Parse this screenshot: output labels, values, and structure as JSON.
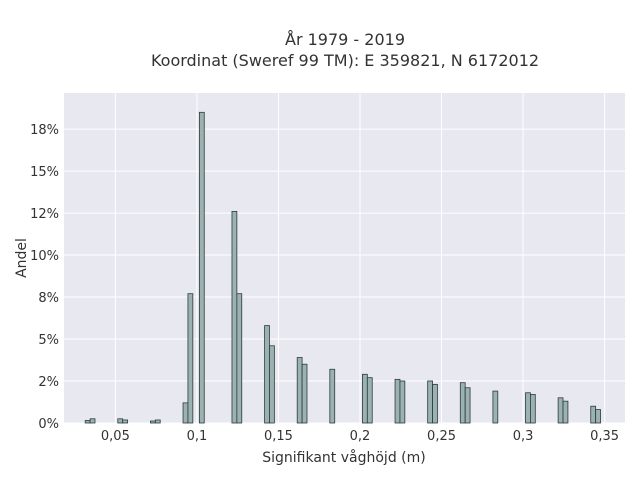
{
  "chart_data": {
    "type": "bar",
    "title_line1": "År 1979 - 2019",
    "title_line2": "Koordinat (Sweref 99 TM): E 359821, N 6172012",
    "xlabel": "Signifikant våghöjd (m)",
    "ylabel": "Andel",
    "xlim": [
      0.0185,
      0.3625
    ],
    "ylim": [
      0,
      0.1965
    ],
    "x_ticks": [
      0.05,
      0.1,
      0.15,
      0.2,
      0.25,
      0.3,
      0.35
    ],
    "x_tick_labels": [
      "0,05",
      "0,1",
      "0,15",
      "0,2",
      "0,25",
      "0,3",
      "0,35"
    ],
    "y_ticks": [
      0,
      0.025,
      0.05,
      0.075,
      0.1,
      0.125,
      0.15,
      0.175
    ],
    "y_tick_labels": [
      "0%",
      "2%",
      "5%",
      "8%",
      "10%",
      "12%",
      "15%",
      "18%"
    ],
    "bar_width": 0.003,
    "grid": true,
    "x": [
      0.033,
      0.036,
      0.043,
      0.046,
      0.053,
      0.056,
      0.063,
      0.066,
      0.073,
      0.076,
      0.083,
      0.086,
      0.093,
      0.096,
      0.103,
      0.106,
      0.113,
      0.116,
      0.123,
      0.126,
      0.133,
      0.136,
      0.143,
      0.146,
      0.153,
      0.156,
      0.163,
      0.166,
      0.173,
      0.176,
      0.183,
      0.186,
      0.193,
      0.196,
      0.203,
      0.206,
      0.213,
      0.216,
      0.223,
      0.226,
      0.233,
      0.236,
      0.243,
      0.246,
      0.253,
      0.256,
      0.263,
      0.266,
      0.273,
      0.276,
      0.283,
      0.286,
      0.293,
      0.296,
      0.303,
      0.306,
      0.313,
      0.316,
      0.323,
      0.326,
      0.333,
      0.336,
      0.343,
      0.346
    ],
    "values": [
      0.0015,
      0.0025,
      0.0,
      0.0,
      0.0025,
      0.0018,
      0.0,
      0.0,
      0.0012,
      0.0018,
      0.0,
      0.0,
      0.012,
      0.077,
      0.185,
      0.0,
      0.0,
      0.0,
      0.126,
      0.077,
      0.0,
      0.0,
      0.058,
      0.046,
      0.0,
      0.0,
      0.039,
      0.035,
      0.0,
      0.0,
      0.032,
      0.0,
      0.0,
      0.0,
      0.029,
      0.027,
      0.0,
      0.0,
      0.026,
      0.025,
      0.0,
      0.0,
      0.025,
      0.023,
      0.0,
      0.0,
      0.024,
      0.021,
      0.0,
      0.0,
      0.019,
      0.0,
      0.0,
      0.0,
      0.018,
      0.017,
      0.0,
      0.0,
      0.015,
      0.013,
      0.0,
      0.0,
      0.01,
      0.008
    ]
  }
}
